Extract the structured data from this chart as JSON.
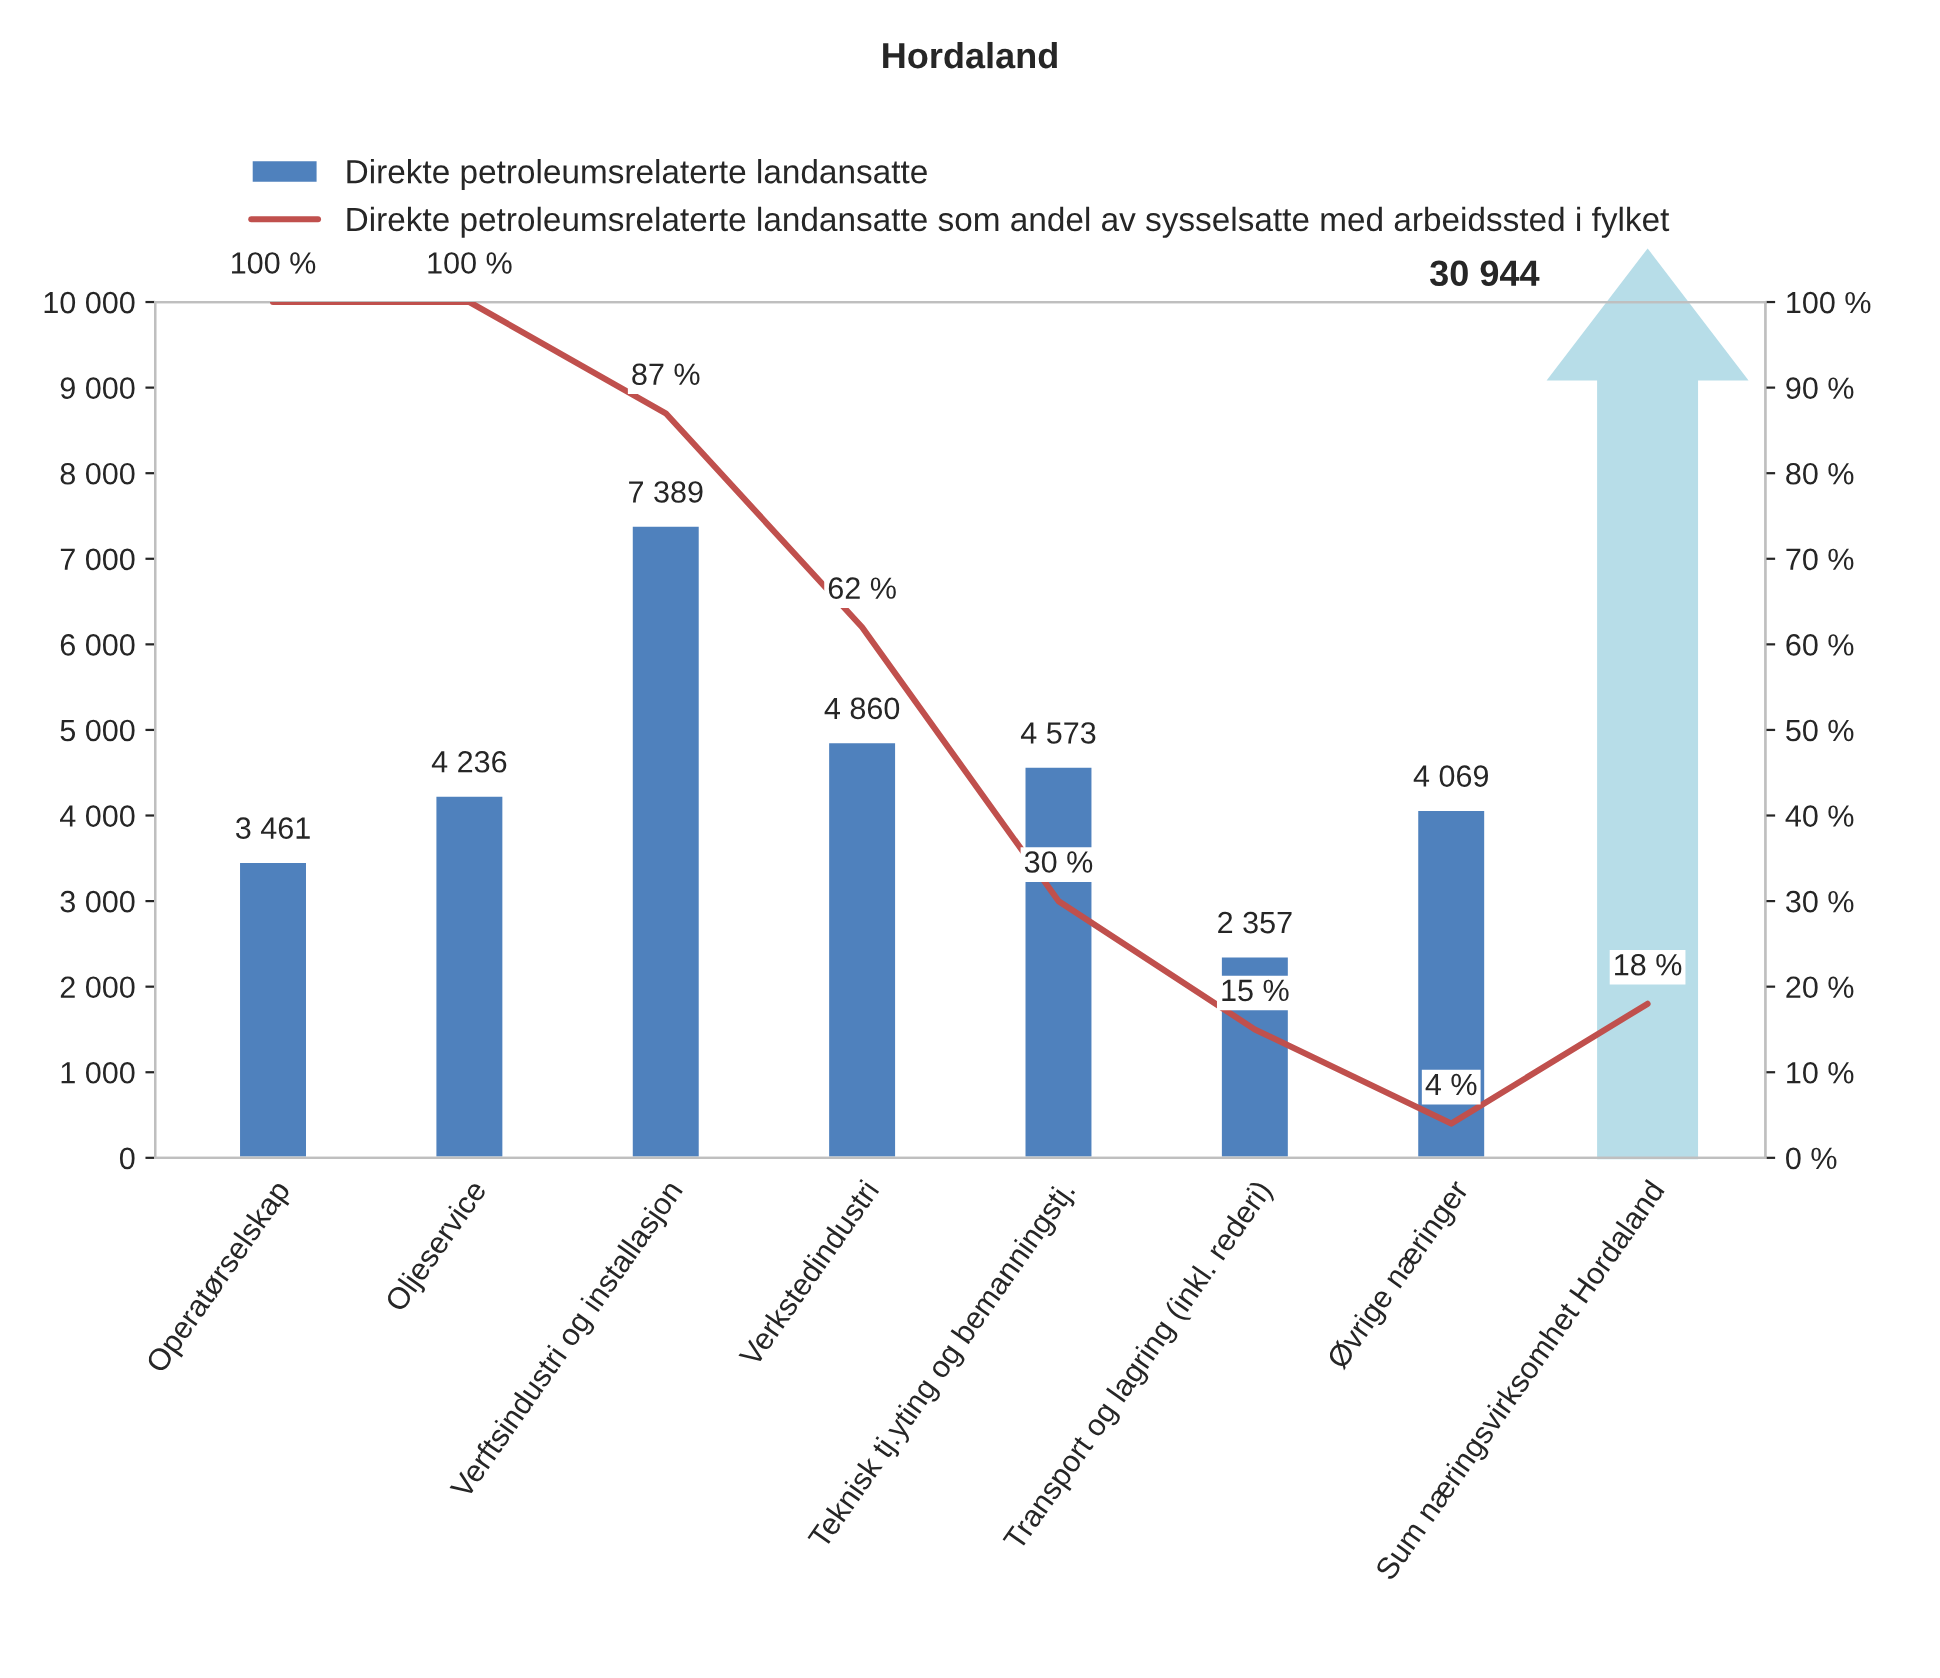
{
  "chart_data": {
    "type": "bar",
    "title": "Hordaland",
    "categories": [
      "Operatørselskap",
      "Oljeservice",
      "Verftsindustri og installasjon",
      "Verkstedindustri",
      "Teknisk tj.yting og bemanningstj.",
      "Transport og lagring (inkl. rederi)",
      "Øvrige næringer",
      "Sum næringsvirksomhet Hordaland"
    ],
    "series": [
      {
        "name": "Direkte petroleumsrelaterte landansatte",
        "color": "#4f81bd",
        "values": [
          3461,
          4236,
          7389,
          4860,
          4573,
          2357,
          4069,
          null
        ],
        "value_labels": [
          "3 461",
          "4 236",
          "7 389",
          "4 860",
          "4 573",
          "2 357",
          "4 069",
          null
        ]
      },
      {
        "name": "Direkte petroleumsrelaterte landansatte som andel av sysselsatte med arbeidssted i fylket",
        "type": "line",
        "axis": "y2",
        "color": "#c0504d",
        "values": [
          100,
          100,
          87,
          62,
          30,
          15,
          4,
          18
        ],
        "value_labels": [
          "100 %",
          "100 %",
          "87 %",
          "62 %",
          "30 %",
          "15 %",
          "4 %",
          "18 %"
        ]
      }
    ],
    "annotations": [
      "30 944"
    ],
    "ylim": [
      0,
      10000
    ],
    "yticks": [
      {
        "value": 0,
        "label": "0"
      },
      {
        "value": 1000,
        "label": "1 000"
      },
      {
        "value": 2000,
        "label": "2 000"
      },
      {
        "value": 3000,
        "label": "3 000"
      },
      {
        "value": 4000,
        "label": "4 000"
      },
      {
        "value": 5000,
        "label": "5 000"
      },
      {
        "value": 6000,
        "label": "6 000"
      },
      {
        "value": 7000,
        "label": "7 000"
      },
      {
        "value": 8000,
        "label": "8 000"
      },
      {
        "value": 9000,
        "label": "9 000"
      },
      {
        "value": 10000,
        "label": "10 000"
      }
    ],
    "y2lim": [
      0,
      100
    ],
    "y2ticks": [
      {
        "value": 0,
        "label": "0 %"
      },
      {
        "value": 10,
        "label": "10 %"
      },
      {
        "value": 20,
        "label": "20 %"
      },
      {
        "value": 30,
        "label": "30 %"
      },
      {
        "value": 40,
        "label": "40 %"
      },
      {
        "value": 50,
        "label": "50 %"
      },
      {
        "value": 60,
        "label": "60 %"
      },
      {
        "value": 70,
        "label": "70 %"
      },
      {
        "value": 80,
        "label": "80 %"
      },
      {
        "value": 90,
        "label": "90 %"
      },
      {
        "value": 100,
        "label": "100 %"
      }
    ],
    "legend": "top",
    "grid": false,
    "line_style": "solid",
    "marker": "none"
  }
}
